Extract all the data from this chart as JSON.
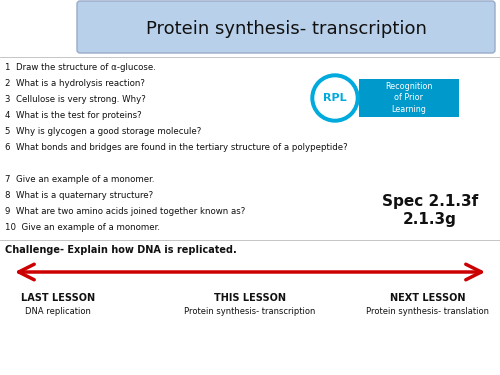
{
  "title": "Protein synthesis- transcription",
  "title_box_color": "#b8d0ea",
  "title_fontsize": 13,
  "bg_color": "#ffffff",
  "questions": [
    "1  Draw the structure of α-glucose.",
    "2  What is a hydrolysis reaction?",
    "3  Cellulose is very strong. Why?",
    "4  What is the test for proteins?",
    "5  Why is glycogen a good storage molecule?",
    "6  What bonds and bridges are found in the tertiary structure of a polypeptide?",
    "",
    "7  Give an example of a monomer.",
    "8  What is a quaternary structure?",
    "9  What are two amino acids joined together known as?",
    "10  Give an example of a monomer."
  ],
  "spec_text1": "Spec 2.1.3f",
  "spec_text2": "2.1.3g",
  "challenge_text": "Challenge- Explain how DNA is replicated.",
  "rpl_circle_color": "#00aadd",
  "rpl_box_color": "#0099cc",
  "last_label": "LAST LESSON",
  "this_label": "THIS LESSON",
  "next_label": "NEXT LESSON",
  "last_sub": "DNA replication",
  "this_sub": "Protein synthesis- transcription",
  "next_sub": "Protein synthesis- translation",
  "arrow_color": "#cc0000",
  "line_color": "#bbbbbb"
}
